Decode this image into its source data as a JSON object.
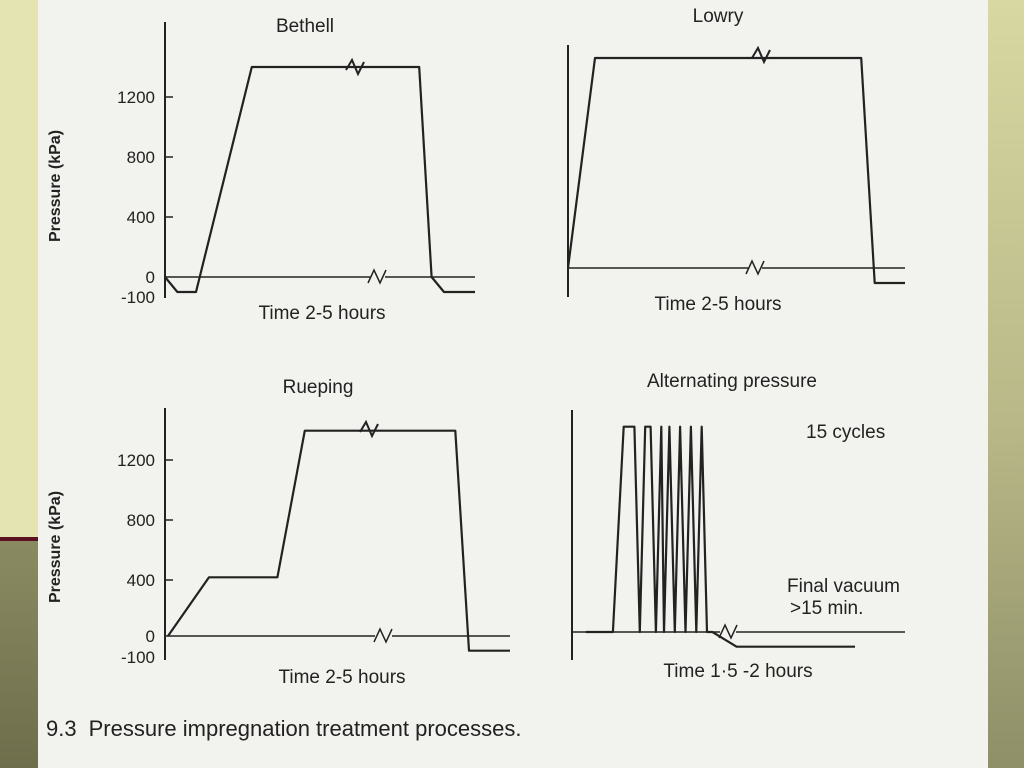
{
  "figure": {
    "number": "9.3",
    "caption": "Pressure impregnation treatment processes."
  },
  "chart_data": [
    {
      "type": "line",
      "title": "Bethell",
      "xlabel": "Time  2-5 hours",
      "ylabel": "Pressure (kPa)",
      "yticks": [
        "1200",
        "800",
        "400",
        "0",
        "-100"
      ],
      "ylim": [
        -100,
        1500
      ],
      "series": [
        {
          "x": [
            0,
            4,
            10,
            28,
            82,
            86,
            90,
            100
          ],
          "y": [
            0,
            -100,
            -100,
            1400,
            1400,
            0,
            -100,
            -100
          ]
        }
      ]
    },
    {
      "type": "line",
      "title": "Lowry",
      "xlabel": "Time 2-5 hours",
      "ylabel": "",
      "yticks": [],
      "ylim": [
        -100,
        1500
      ],
      "series": [
        {
          "x": [
            0,
            8,
            87,
            91,
            100
          ],
          "y": [
            0,
            1400,
            1400,
            -100,
            -100
          ]
        }
      ]
    },
    {
      "type": "line",
      "title": "Rueping",
      "xlabel": "Time 2-5 hours",
      "ylabel": "Pressure (kPa)",
      "yticks": [
        "1200",
        "800",
        "400",
        "0",
        "-100"
      ],
      "ylim": [
        -100,
        1500
      ],
      "series": [
        {
          "x": [
            0,
            12,
            32,
            40,
            84,
            88,
            100
          ],
          "y": [
            0,
            400,
            400,
            1400,
            1400,
            -100,
            -100
          ]
        }
      ]
    },
    {
      "type": "line",
      "title": "Alternating pressure",
      "xlabel": "Time 1·5 -2 hours",
      "ylabel": "",
      "yticks": [],
      "ylim": [
        -100,
        1500
      ],
      "annotations": [
        "15 cycles",
        "Final vacuum",
        ">15 min."
      ],
      "series": [
        {
          "x": [
            0,
            10,
            14,
            18,
            20,
            22,
            24,
            26,
            28,
            29,
            31,
            33,
            35,
            37,
            39,
            41,
            43,
            45,
            47,
            56,
            60,
            100
          ],
          "y": [
            0,
            0,
            1400,
            1400,
            0,
            1400,
            1400,
            0,
            1400,
            0,
            1400,
            0,
            1400,
            0,
            1400,
            0,
            1400,
            0,
            0,
            -100,
            -100,
            -100
          ]
        }
      ]
    }
  ]
}
